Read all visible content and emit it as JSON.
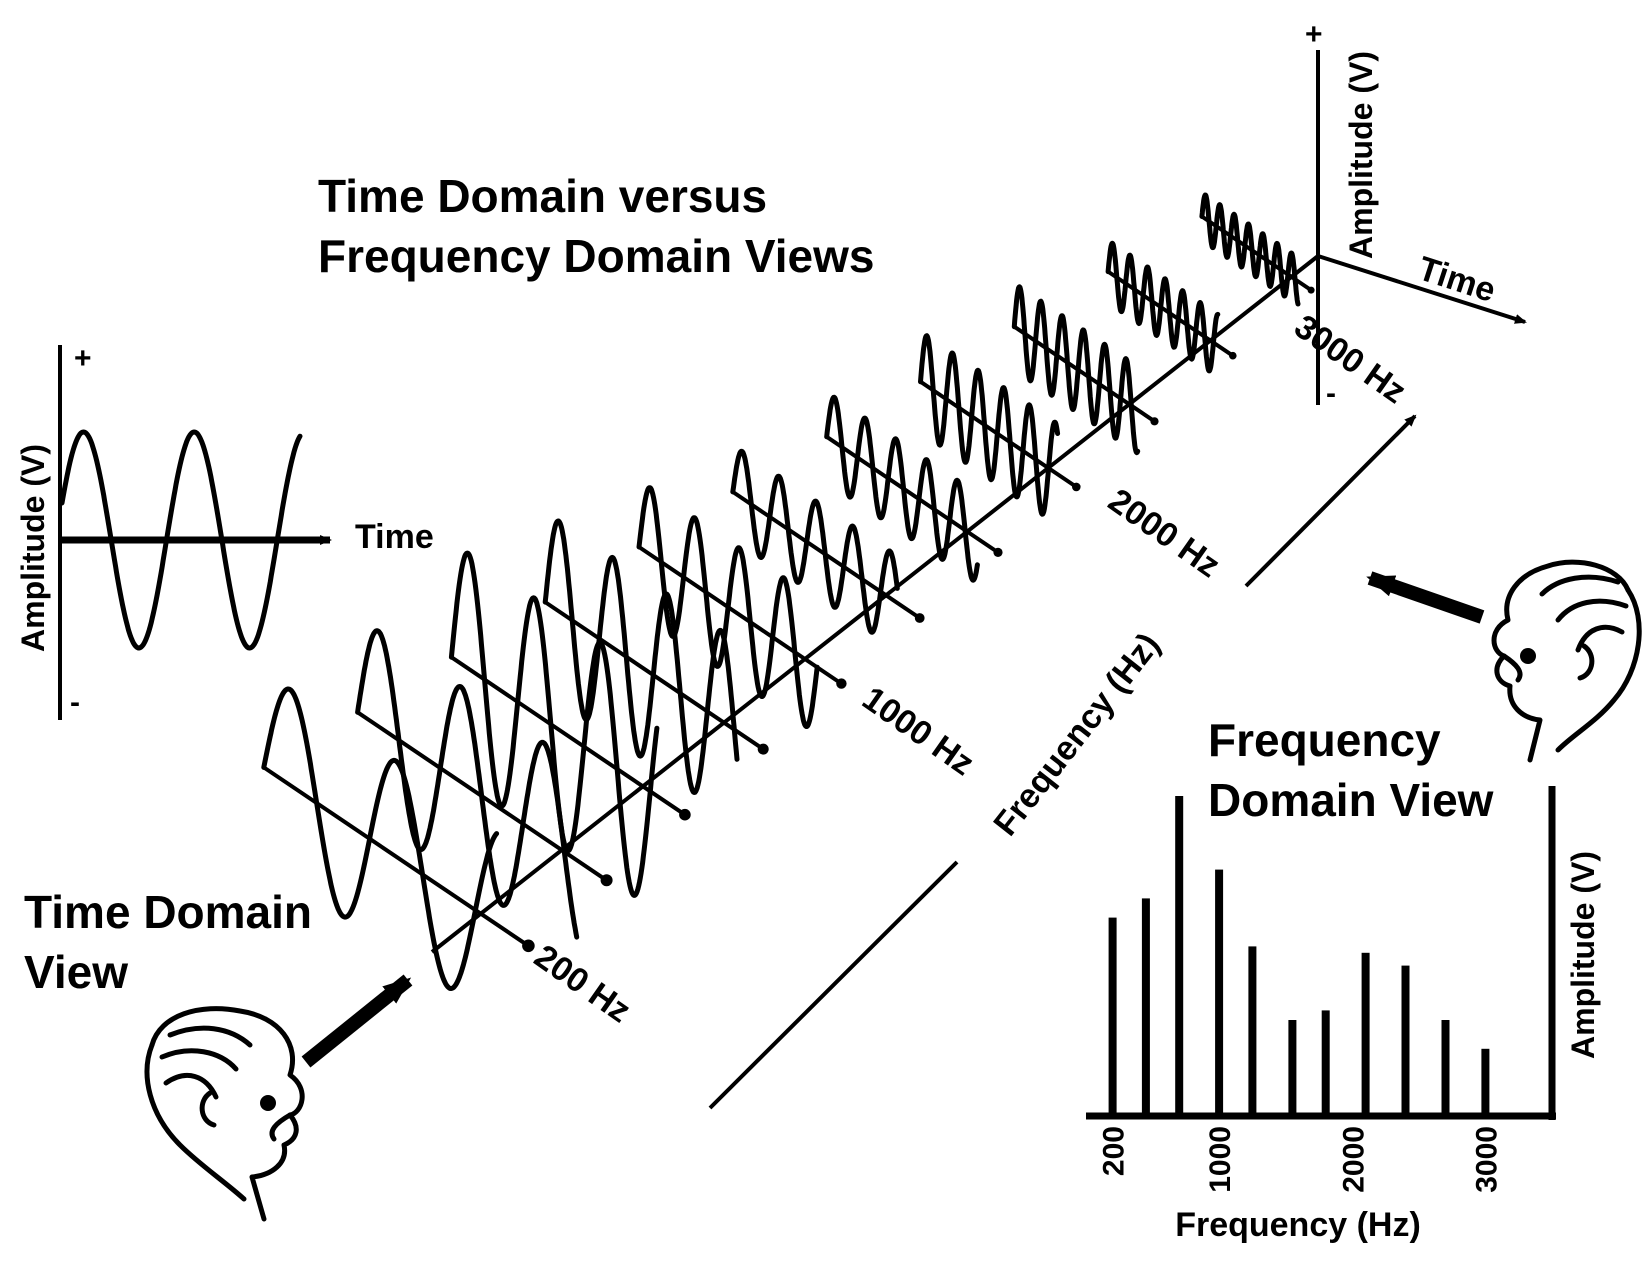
{
  "title": {
    "line1": "Time Domain versus",
    "line2": "Frequency Domain Views"
  },
  "time_view": {
    "label_line1": "Time Domain",
    "label_line2": "View",
    "y_label": "Amplitude (V)",
    "x_label": "Time",
    "plus": "+",
    "minus": "-"
  },
  "waterfall": {
    "freq_labels": [
      "200 Hz",
      "1000 Hz",
      "2000 Hz",
      "3000 Hz"
    ],
    "freq_axis_label": "Frequency (Hz)",
    "corner_y_label": "Amplitude (V)",
    "corner_x_label": "Time",
    "plus": "+",
    "minus": "-"
  },
  "freq_view": {
    "label_line1": "Frequency",
    "label_line2": "Domain View"
  },
  "chart_data": {
    "type": "bar",
    "xlabel": "Frequency (Hz)",
    "ylabel": "Amplitude (V)",
    "tick_labels": [
      "200",
      "1000",
      "2000",
      "3000"
    ],
    "tick_values": [
      200,
      1000,
      2000,
      3000
    ],
    "xlim": [
      0,
      3500
    ],
    "ylim": [
      0,
      1
    ],
    "x": [
      200,
      450,
      700,
      1000,
      1250,
      1550,
      1800,
      2100,
      2400,
      2700,
      3000
    ],
    "values": [
      0.62,
      0.68,
      1.0,
      0.77,
      0.53,
      0.3,
      0.33,
      0.51,
      0.47,
      0.3,
      0.21
    ]
  },
  "icons": {
    "time_viewer": "person-head-icon",
    "freq_viewer": "person-head-icon"
  }
}
